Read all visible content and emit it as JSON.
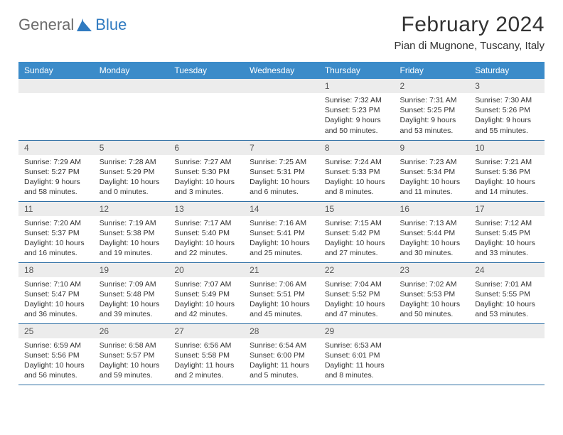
{
  "brand": {
    "word1": "General",
    "word2": "Blue",
    "logo_fill": "#2f7ac0"
  },
  "header": {
    "title": "February 2024",
    "subtitle": "Pian di Mugnone, Tuscany, Italy"
  },
  "colors": {
    "header_bg": "#3b8bc9",
    "header_text": "#ffffff",
    "daynum_bg": "#ececec",
    "border": "#2f6fa5",
    "body_text": "#333333"
  },
  "layout": {
    "columns": 7,
    "rows": 5,
    "cell_fontsize": 10.5,
    "daynum_fontsize": 12,
    "header_fontsize": 12,
    "title_fontsize": 30,
    "subtitle_fontsize": 15
  },
  "weekdays": [
    "Sunday",
    "Monday",
    "Tuesday",
    "Wednesday",
    "Thursday",
    "Friday",
    "Saturday"
  ],
  "weeks": [
    [
      null,
      null,
      null,
      null,
      {
        "n": "1",
        "sunrise": "Sunrise: 7:32 AM",
        "sunset": "Sunset: 5:23 PM",
        "day1": "Daylight: 9 hours",
        "day2": "and 50 minutes."
      },
      {
        "n": "2",
        "sunrise": "Sunrise: 7:31 AM",
        "sunset": "Sunset: 5:25 PM",
        "day1": "Daylight: 9 hours",
        "day2": "and 53 minutes."
      },
      {
        "n": "3",
        "sunrise": "Sunrise: 7:30 AM",
        "sunset": "Sunset: 5:26 PM",
        "day1": "Daylight: 9 hours",
        "day2": "and 55 minutes."
      }
    ],
    [
      {
        "n": "4",
        "sunrise": "Sunrise: 7:29 AM",
        "sunset": "Sunset: 5:27 PM",
        "day1": "Daylight: 9 hours",
        "day2": "and 58 minutes."
      },
      {
        "n": "5",
        "sunrise": "Sunrise: 7:28 AM",
        "sunset": "Sunset: 5:29 PM",
        "day1": "Daylight: 10 hours",
        "day2": "and 0 minutes."
      },
      {
        "n": "6",
        "sunrise": "Sunrise: 7:27 AM",
        "sunset": "Sunset: 5:30 PM",
        "day1": "Daylight: 10 hours",
        "day2": "and 3 minutes."
      },
      {
        "n": "7",
        "sunrise": "Sunrise: 7:25 AM",
        "sunset": "Sunset: 5:31 PM",
        "day1": "Daylight: 10 hours",
        "day2": "and 6 minutes."
      },
      {
        "n": "8",
        "sunrise": "Sunrise: 7:24 AM",
        "sunset": "Sunset: 5:33 PM",
        "day1": "Daylight: 10 hours",
        "day2": "and 8 minutes."
      },
      {
        "n": "9",
        "sunrise": "Sunrise: 7:23 AM",
        "sunset": "Sunset: 5:34 PM",
        "day1": "Daylight: 10 hours",
        "day2": "and 11 minutes."
      },
      {
        "n": "10",
        "sunrise": "Sunrise: 7:21 AM",
        "sunset": "Sunset: 5:36 PM",
        "day1": "Daylight: 10 hours",
        "day2": "and 14 minutes."
      }
    ],
    [
      {
        "n": "11",
        "sunrise": "Sunrise: 7:20 AM",
        "sunset": "Sunset: 5:37 PM",
        "day1": "Daylight: 10 hours",
        "day2": "and 16 minutes."
      },
      {
        "n": "12",
        "sunrise": "Sunrise: 7:19 AM",
        "sunset": "Sunset: 5:38 PM",
        "day1": "Daylight: 10 hours",
        "day2": "and 19 minutes."
      },
      {
        "n": "13",
        "sunrise": "Sunrise: 7:17 AM",
        "sunset": "Sunset: 5:40 PM",
        "day1": "Daylight: 10 hours",
        "day2": "and 22 minutes."
      },
      {
        "n": "14",
        "sunrise": "Sunrise: 7:16 AM",
        "sunset": "Sunset: 5:41 PM",
        "day1": "Daylight: 10 hours",
        "day2": "and 25 minutes."
      },
      {
        "n": "15",
        "sunrise": "Sunrise: 7:15 AM",
        "sunset": "Sunset: 5:42 PM",
        "day1": "Daylight: 10 hours",
        "day2": "and 27 minutes."
      },
      {
        "n": "16",
        "sunrise": "Sunrise: 7:13 AM",
        "sunset": "Sunset: 5:44 PM",
        "day1": "Daylight: 10 hours",
        "day2": "and 30 minutes."
      },
      {
        "n": "17",
        "sunrise": "Sunrise: 7:12 AM",
        "sunset": "Sunset: 5:45 PM",
        "day1": "Daylight: 10 hours",
        "day2": "and 33 minutes."
      }
    ],
    [
      {
        "n": "18",
        "sunrise": "Sunrise: 7:10 AM",
        "sunset": "Sunset: 5:47 PM",
        "day1": "Daylight: 10 hours",
        "day2": "and 36 minutes."
      },
      {
        "n": "19",
        "sunrise": "Sunrise: 7:09 AM",
        "sunset": "Sunset: 5:48 PM",
        "day1": "Daylight: 10 hours",
        "day2": "and 39 minutes."
      },
      {
        "n": "20",
        "sunrise": "Sunrise: 7:07 AM",
        "sunset": "Sunset: 5:49 PM",
        "day1": "Daylight: 10 hours",
        "day2": "and 42 minutes."
      },
      {
        "n": "21",
        "sunrise": "Sunrise: 7:06 AM",
        "sunset": "Sunset: 5:51 PM",
        "day1": "Daylight: 10 hours",
        "day2": "and 45 minutes."
      },
      {
        "n": "22",
        "sunrise": "Sunrise: 7:04 AM",
        "sunset": "Sunset: 5:52 PM",
        "day1": "Daylight: 10 hours",
        "day2": "and 47 minutes."
      },
      {
        "n": "23",
        "sunrise": "Sunrise: 7:02 AM",
        "sunset": "Sunset: 5:53 PM",
        "day1": "Daylight: 10 hours",
        "day2": "and 50 minutes."
      },
      {
        "n": "24",
        "sunrise": "Sunrise: 7:01 AM",
        "sunset": "Sunset: 5:55 PM",
        "day1": "Daylight: 10 hours",
        "day2": "and 53 minutes."
      }
    ],
    [
      {
        "n": "25",
        "sunrise": "Sunrise: 6:59 AM",
        "sunset": "Sunset: 5:56 PM",
        "day1": "Daylight: 10 hours",
        "day2": "and 56 minutes."
      },
      {
        "n": "26",
        "sunrise": "Sunrise: 6:58 AM",
        "sunset": "Sunset: 5:57 PM",
        "day1": "Daylight: 10 hours",
        "day2": "and 59 minutes."
      },
      {
        "n": "27",
        "sunrise": "Sunrise: 6:56 AM",
        "sunset": "Sunset: 5:58 PM",
        "day1": "Daylight: 11 hours",
        "day2": "and 2 minutes."
      },
      {
        "n": "28",
        "sunrise": "Sunrise: 6:54 AM",
        "sunset": "Sunset: 6:00 PM",
        "day1": "Daylight: 11 hours",
        "day2": "and 5 minutes."
      },
      {
        "n": "29",
        "sunrise": "Sunrise: 6:53 AM",
        "sunset": "Sunset: 6:01 PM",
        "day1": "Daylight: 11 hours",
        "day2": "and 8 minutes."
      },
      null,
      null
    ]
  ]
}
